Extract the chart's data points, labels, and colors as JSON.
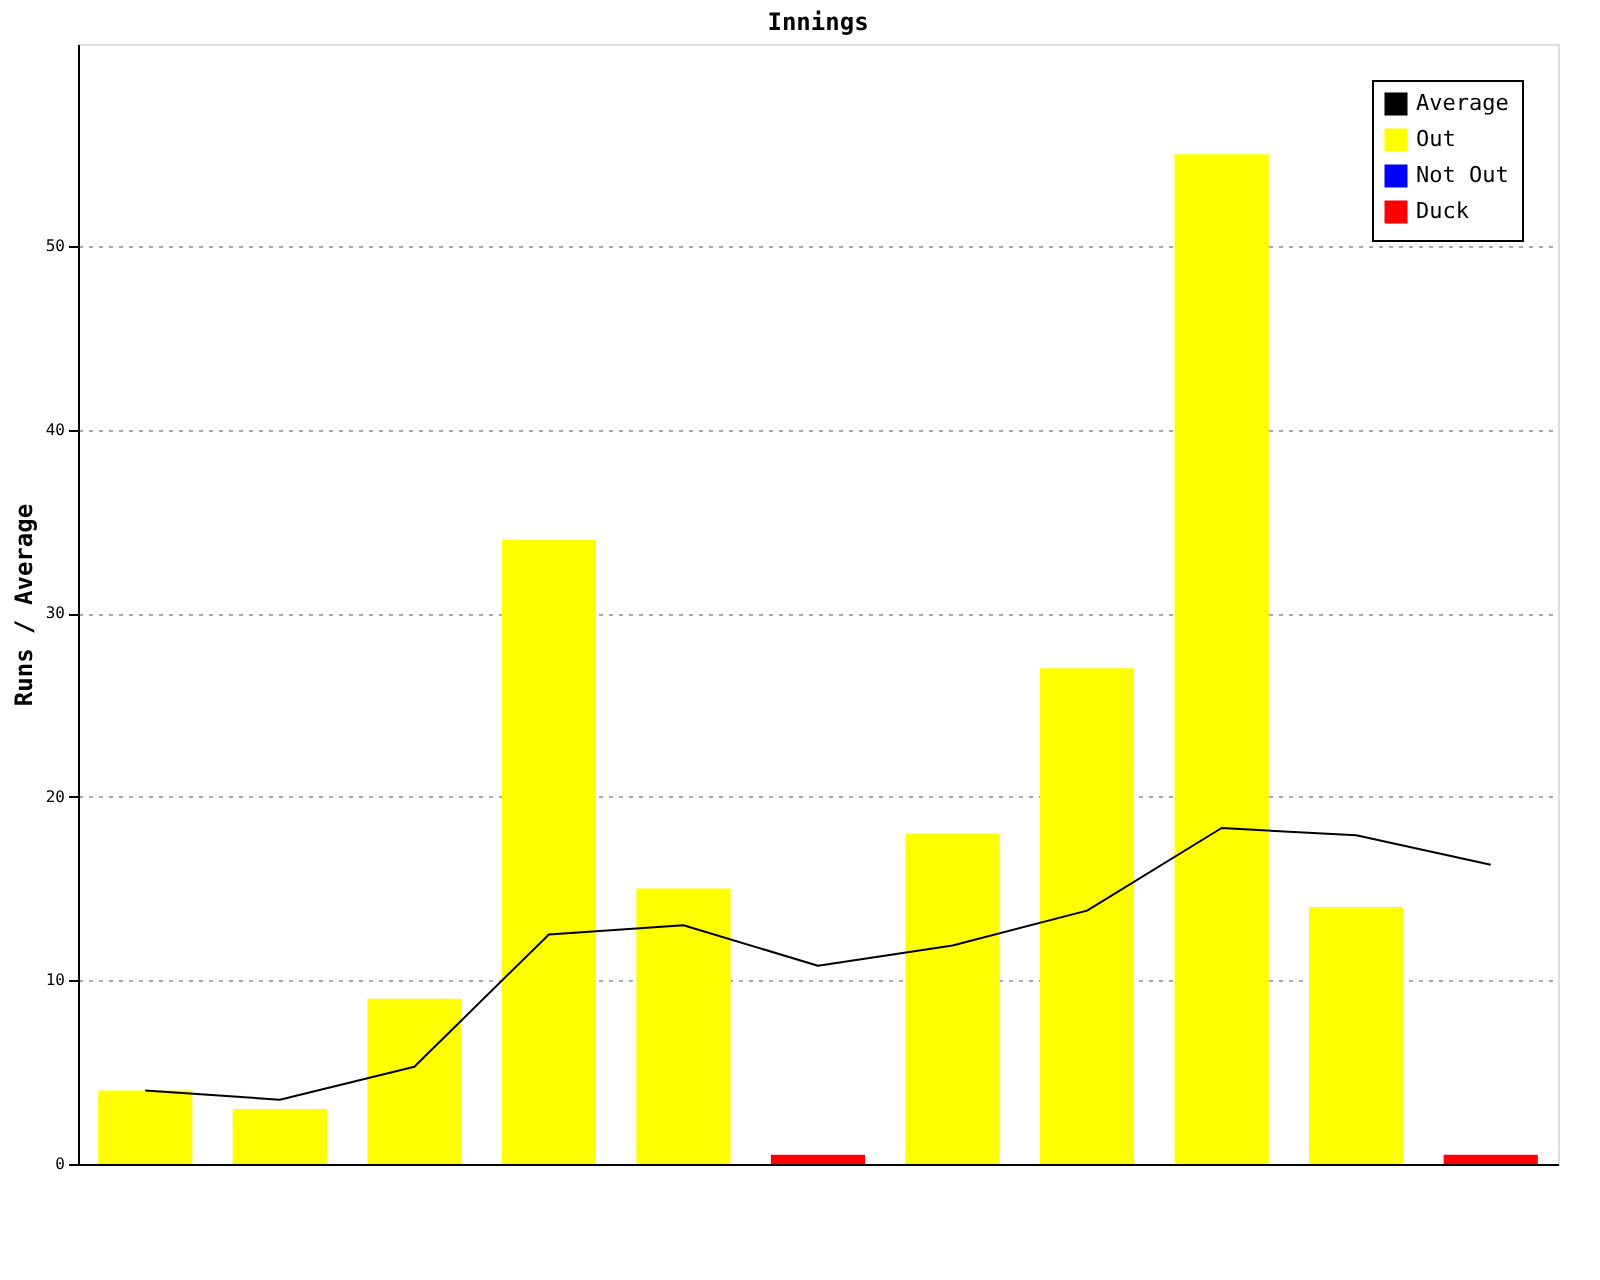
{
  "chart_data": {
    "type": "bar",
    "title": "Innings",
    "ylabel": "Runs / Average",
    "categories": [
      null,
      null,
      null,
      null,
      null,
      null,
      null,
      null,
      null,
      null,
      null
    ],
    "series": [
      {
        "name": "Average",
        "type": "line",
        "color": "#000000",
        "values": [
          4,
          3.5,
          5.3,
          12.5,
          13,
          10.8,
          11.9,
          13.8,
          18.3,
          17.9,
          16.3
        ]
      },
      {
        "name": "Out",
        "color": "#ffff00",
        "values": [
          4,
          3,
          9,
          34,
          15,
          null,
          18,
          27,
          55,
          14,
          null
        ]
      },
      {
        "name": "Not Out",
        "color": "#0000ff",
        "values": [
          null,
          null,
          null,
          null,
          null,
          null,
          null,
          null,
          null,
          null,
          null
        ]
      },
      {
        "name": "Duck",
        "color": "#ff0000",
        "values": [
          null,
          null,
          null,
          null,
          null,
          0.5,
          null,
          null,
          null,
          null,
          0.5
        ]
      }
    ],
    "ylim": [
      0,
      61
    ],
    "yticks": [
      0,
      10,
      20,
      30,
      40,
      50
    ],
    "grid": "y",
    "legend": "top right",
    "tick_labels": "y",
    "marker": "none"
  }
}
